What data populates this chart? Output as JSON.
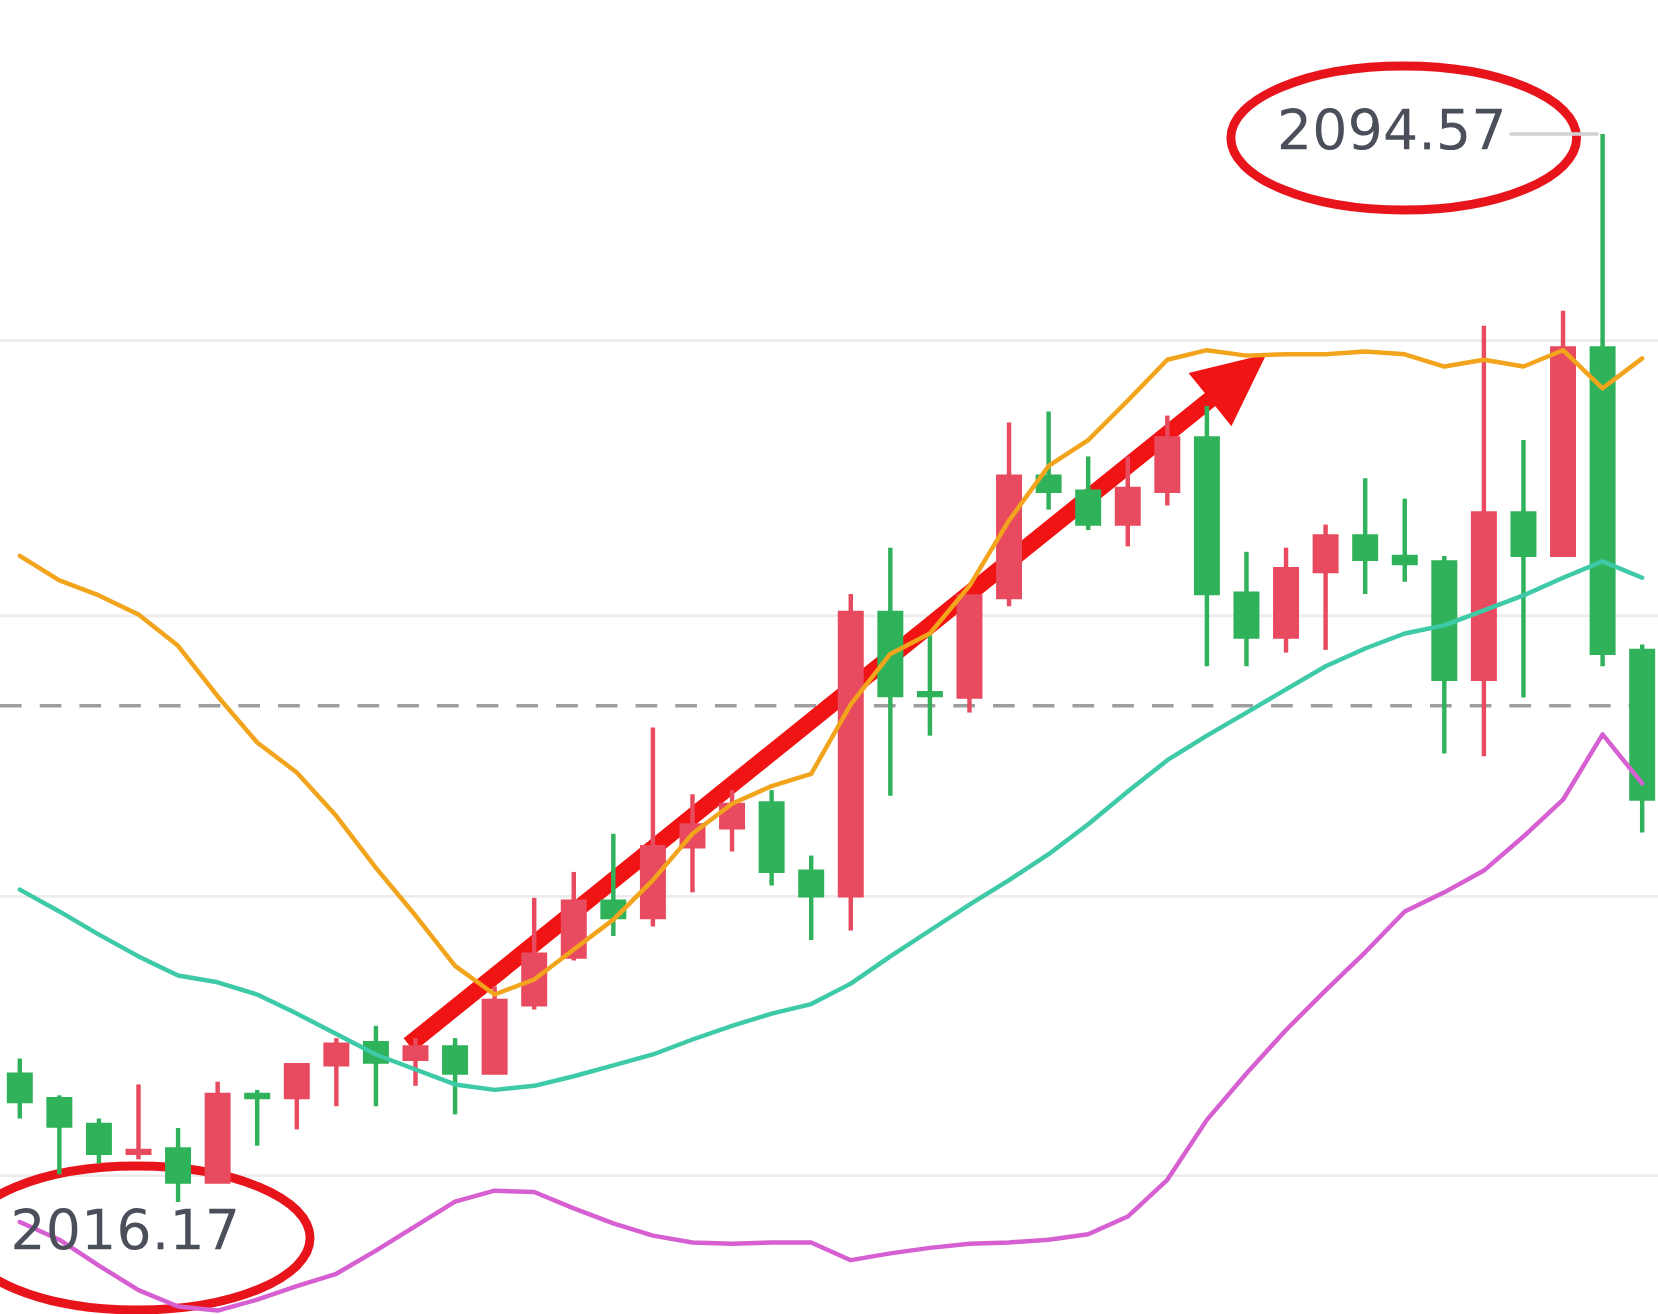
{
  "chart_data": {
    "type": "candlestick",
    "categories": [
      null,
      null,
      null,
      null,
      null,
      null,
      null,
      null,
      null,
      null,
      null,
      null,
      null,
      null,
      null,
      null,
      null,
      null,
      null,
      null,
      null,
      null,
      null,
      null,
      null,
      null,
      null,
      null,
      null,
      null,
      null,
      null,
      null,
      null,
      null,
      null,
      null,
      null,
      null,
      null,
      null,
      null
    ],
    "ohlc": [
      [
        2025.6,
        2026.7,
        2022.3,
        2023.5
      ],
      [
        2023.8,
        2024.0,
        2018.2,
        2021.7
      ],
      [
        2021.9,
        2022.3,
        2019.0,
        2019.7
      ],
      [
        2019.7,
        2024.8,
        2019.3,
        2020.0
      ],
      [
        2020.1,
        2021.6,
        2016.17,
        2017.6
      ],
      [
        2017.6,
        2025.0,
        2017.6,
        2024.1
      ],
      [
        2024.1,
        2024.4,
        2020.3,
        2023.8
      ],
      [
        2023.8,
        2026.3,
        2021.5,
        2026.3
      ],
      [
        2026.2,
        2028.2,
        2023.2,
        2027.8
      ],
      [
        2027.9,
        2029.1,
        2023.2,
        2026.4
      ],
      [
        2026.6,
        2028.2,
        2024.7,
        2027.6
      ],
      [
        2027.6,
        2028.2,
        2022.6,
        2025.6
      ],
      [
        2025.6,
        2032.0,
        2025.6,
        2031.0
      ],
      [
        2030.6,
        2038.5,
        2030.3,
        2034.4
      ],
      [
        2034.1,
        2040.4,
        2033.9,
        2038.3
      ],
      [
        2038.3,
        2043.2,
        2035.7,
        2037.0
      ],
      [
        2037.0,
        2051.0,
        2036.4,
        2042.3
      ],
      [
        2042.2,
        2046.1,
        2038.9,
        2043.9
      ],
      [
        2043.6,
        2046.4,
        2041.9,
        2045.4
      ],
      [
        2045.5,
        2046.4,
        2039.4,
        2040.4
      ],
      [
        2040.5,
        2041.6,
        2035.4,
        2038.6
      ],
      [
        2038.6,
        2060.8,
        2036.1,
        2059.5
      ],
      [
        2059.5,
        2064.2,
        2046.0,
        2053.3
      ],
      [
        2053.6,
        2057.9,
        2050.4,
        2053.3
      ],
      [
        2053.2,
        2060.7,
        2052.1,
        2060.7
      ],
      [
        2060.5,
        2073.4,
        2059.9,
        2069.5
      ],
      [
        2069.5,
        2074.2,
        2067.0,
        2068.3
      ],
      [
        2068.4,
        2070.9,
        2065.5,
        2065.9
      ],
      [
        2065.9,
        2070.9,
        2064.3,
        2068.6
      ],
      [
        2068.3,
        2073.9,
        2067.3,
        2072.3
      ],
      [
        2072.3,
        2074.6,
        2055.5,
        2060.8
      ],
      [
        2060.9,
        2063.9,
        2055.5,
        2057.6
      ],
      [
        2057.6,
        2064.2,
        2056.5,
        2062.7
      ],
      [
        2062.4,
        2065.9,
        2056.7,
        2065.1
      ],
      [
        2065.1,
        2069.3,
        2060.8,
        2063.3
      ],
      [
        2063.6,
        2067.8,
        2061.7,
        2063.0
      ],
      [
        2063.2,
        2063.6,
        2049.1,
        2054.5
      ],
      [
        2054.5,
        2080.5,
        2048.9,
        2066.8
      ],
      [
        2066.8,
        2072.1,
        2053.2,
        2063.6
      ],
      [
        2063.6,
        2081.6,
        2063.6,
        2078.9
      ],
      [
        2078.9,
        2094.57,
        2055.5,
        2056.4
      ],
      [
        2056.7,
        2057.1,
        2043.3,
        2045.7
      ]
    ],
    "colors": [
      "#2fb25a",
      "#2fb25a",
      "#2fb25a",
      "#e84a5f",
      "#2fb25a",
      "#e84a5f",
      "#2fb25a",
      "#e84a5f",
      "#e84a5f",
      "#2fb25a",
      "#e84a5f",
      "#2fb25a",
      "#e84a5f",
      "#e84a5f",
      "#e84a5f",
      "#2fb25a",
      "#e84a5f",
      "#e84a5f",
      "#e84a5f",
      "#2fb25a",
      "#2fb25a",
      "#e84a5f",
      "#2fb25a",
      "#2fb25a",
      "#e84a5f",
      "#e84a5f",
      "#2fb25a",
      "#2fb25a",
      "#e84a5f",
      "#e84a5f",
      "#2fb25a",
      "#2fb25a",
      "#e84a5f",
      "#e84a5f",
      "#2fb25a",
      "#2fb25a",
      "#2fb25a",
      "#e84a5f",
      "#2fb25a",
      "#e84a5f",
      "#2fb25a",
      "#2fb25a"
    ],
    "series": [
      {
        "type": "line",
        "color": "#f2a41c",
        "values": [
          2063.6,
          2061.8,
          2060.7,
          2059.3,
          2057.0,
          2053.3,
          2049.9,
          2047.7,
          2044.5,
          2040.7,
          2037.2,
          2033.5,
          2031.4,
          2032.5,
          2034.7,
          2036.9,
          2039.8,
          2043.2,
          2045.4,
          2046.7,
          2047.6,
          2052.7,
          2056.4,
          2057.9,
          2061.4,
          2066.2,
          2070.2,
          2072.1,
          2075.0,
          2078.0,
          2078.7,
          2078.3,
          2078.4,
          2078.4,
          2078.6,
          2078.4,
          2077.5,
          2078.0,
          2077.5,
          2078.7,
          2075.9,
          2078.1
        ]
      },
      {
        "type": "line",
        "color": "#3ec9a7",
        "values": [
          2039.1,
          2037.5,
          2035.8,
          2034.2,
          2032.8,
          2032.3,
          2031.4,
          2030.0,
          2028.5,
          2027.0,
          2025.9,
          2024.8,
          2024.4,
          2024.7,
          2025.4,
          2026.2,
          2027.0,
          2028.1,
          2029.1,
          2030.0,
          2030.7,
          2032.2,
          2034.2,
          2036.1,
          2038.0,
          2039.8,
          2041.7,
          2043.9,
          2046.3,
          2048.6,
          2050.4,
          2052.1,
          2053.8,
          2055.5,
          2056.8,
          2057.9,
          2058.5,
          2059.6,
          2060.7,
          2062.0,
          2063.2,
          2062.0
        ]
      },
      {
        "type": "line",
        "color": "#d65fd1",
        "values": [
          2014.7,
          2013.4,
          2011.5,
          2009.7,
          2008.5,
          2008.2,
          2009.0,
          2010.0,
          2010.9,
          2012.6,
          2014.4,
          2016.2,
          2017.0,
          2016.9,
          2015.7,
          2014.6,
          2013.7,
          2013.2,
          2013.1,
          2013.2,
          2013.2,
          2011.9,
          2012.4,
          2012.8,
          2013.1,
          2013.2,
          2013.4,
          2013.8,
          2015.1,
          2017.8,
          2022.2,
          2025.6,
          2028.8,
          2031.7,
          2034.5,
          2037.5,
          2038.9,
          2040.5,
          2043.0,
          2045.7,
          2050.5,
          2046.9
        ]
      }
    ],
    "yticks": [
      {
        "value": 2079.4,
        "label": null
      },
      {
        "value": 2059.2,
        "label": null
      },
      {
        "value": 2038.6,
        "label": null
      },
      {
        "value": 2018.1,
        "label": null
      }
    ],
    "grid": "y",
    "ref_lines": [
      {
        "axis": "y",
        "value": 2052.6,
        "color": "#9e9e9e",
        "line_style": "dashed"
      }
    ],
    "annotations": [
      "2094.57",
      "2016.17"
    ]
  }
}
